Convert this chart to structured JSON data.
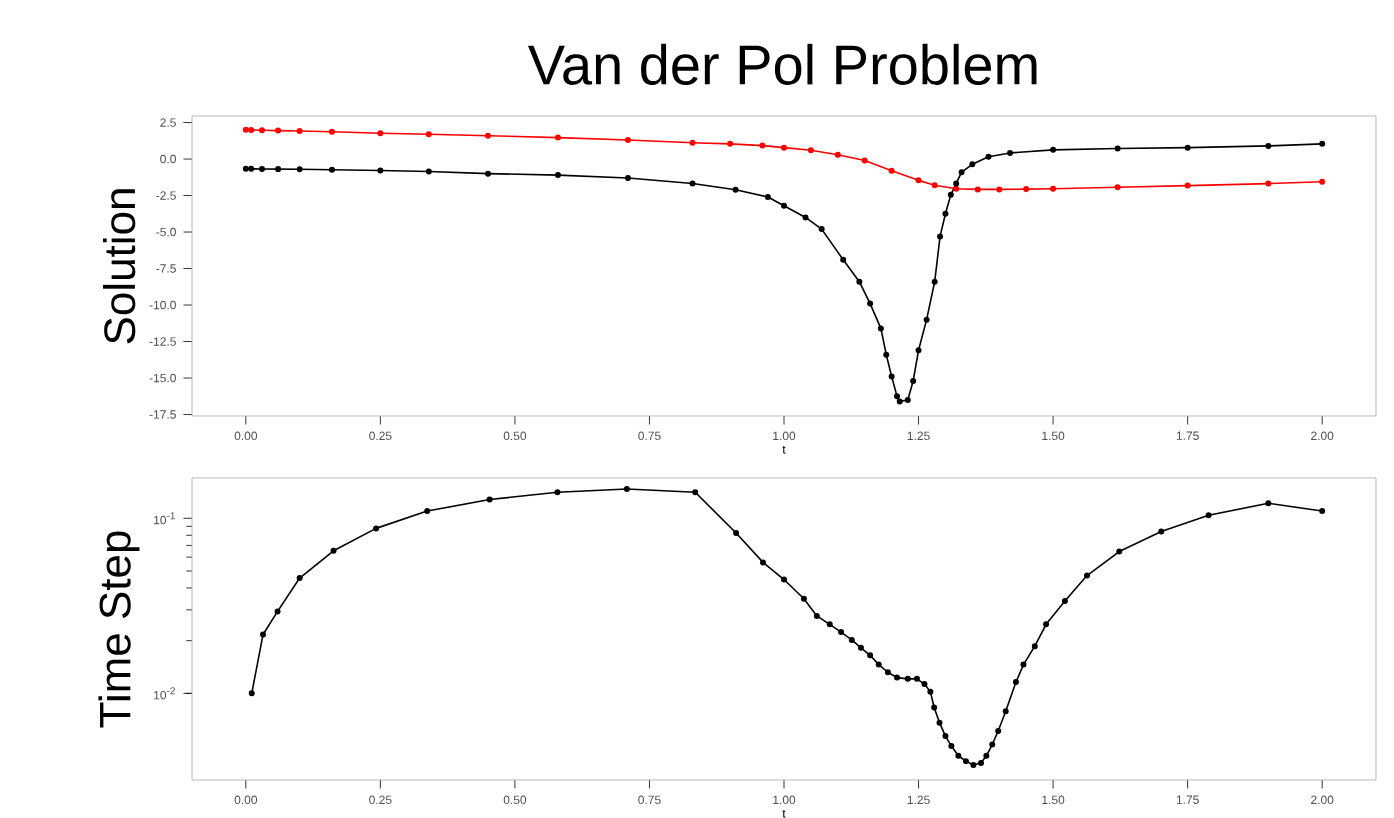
{
  "chart_data": [
    {
      "type": "line",
      "title": "Van der Pol Problem",
      "xlabel": "t",
      "ylabel": "Solution",
      "marker": "circle",
      "line_style": "solid",
      "xlim": [
        -0.1,
        2.1
      ],
      "ylim": [
        -17.6,
        2.95
      ],
      "xticks": [
        {
          "value": 0,
          "label": "0.00"
        },
        0.25,
        {
          "value": 0.5,
          "label": "0.50"
        },
        0.75,
        {
          "value": 1,
          "label": "1.00"
        },
        1.25,
        {
          "value": 1.5,
          "label": "1.50"
        },
        1.75,
        {
          "value": 2,
          "label": "2.00"
        }
      ],
      "yticks": [
        2.5,
        {
          "value": 0,
          "label": "0.0"
        },
        -2.5,
        {
          "value": -5,
          "label": "-5.0"
        },
        -7.5,
        {
          "value": -10,
          "label": "-10.0"
        },
        -12.5,
        {
          "value": -15,
          "label": "-15.0"
        },
        -17.5
      ],
      "series": [
        {
          "color": "#ff0000",
          "x": [
            0,
            0.01,
            0.03,
            0.06,
            0.1,
            0.16,
            0.25,
            0.34,
            0.45,
            0.58,
            0.71,
            0.83,
            0.9,
            0.96,
            1.0,
            1.05,
            1.1,
            1.15,
            1.2,
            1.25,
            1.28,
            1.32,
            1.36,
            1.4,
            1.45,
            1.5,
            1.62,
            1.75,
            1.9,
            2.0
          ],
          "values": [
            2.0,
            1.99,
            1.97,
            1.95,
            1.92,
            1.87,
            1.77,
            1.7,
            1.6,
            1.47,
            1.3,
            1.12,
            1.04,
            0.92,
            0.78,
            0.6,
            0.3,
            -0.1,
            -0.8,
            -1.46,
            -1.8,
            -2.03,
            -2.08,
            -2.08,
            -2.06,
            -2.03,
            -1.93,
            -1.82,
            -1.68,
            -1.56
          ]
        },
        {
          "color": "#000000",
          "x": [
            0,
            0.01,
            0.03,
            0.06,
            0.1,
            0.16,
            0.25,
            0.34,
            0.45,
            0.58,
            0.71,
            0.83,
            0.91,
            0.97,
            1.0,
            1.04,
            1.07,
            1.11,
            1.14,
            1.16,
            1.18,
            1.19,
            1.2,
            1.21,
            1.215,
            1.23,
            1.24,
            1.25,
            1.265,
            1.28,
            1.29,
            1.3,
            1.31,
            1.32,
            1.33,
            1.35,
            1.38,
            1.42,
            1.5,
            1.62,
            1.75,
            1.9,
            2.0
          ],
          "values": [
            -0.67,
            -0.67,
            -0.68,
            -0.69,
            -0.7,
            -0.73,
            -0.78,
            -0.85,
            -1.0,
            -1.1,
            -1.3,
            -1.67,
            -2.1,
            -2.6,
            -3.2,
            -4.0,
            -4.8,
            -6.9,
            -8.4,
            -9.9,
            -11.6,
            -13.4,
            -14.9,
            -16.25,
            -16.6,
            -16.5,
            -15.2,
            -13.1,
            -11.0,
            -8.4,
            -5.3,
            -3.75,
            -2.45,
            -1.67,
            -0.9,
            -0.36,
            0.16,
            0.42,
            0.63,
            0.72,
            0.78,
            0.9,
            1.04
          ]
        }
      ]
    },
    {
      "type": "line",
      "xlabel": "t",
      "ylabel": "Time Step",
      "marker": "circle",
      "line_style": "solid",
      "log": "y",
      "xlim": [
        -0.1,
        2.1
      ],
      "ylim": [
        0.0032,
        0.17
      ],
      "xticks": [
        {
          "value": 0,
          "label": "0.00"
        },
        0.25,
        {
          "value": 0.5,
          "label": "0.50"
        },
        0.75,
        {
          "value": 1,
          "label": "1.00"
        },
        1.25,
        {
          "value": 1.5,
          "label": "1.50"
        },
        1.75,
        {
          "value": 2,
          "label": "2.00"
        }
      ],
      "yticks": [
        {
          "value": 0.01,
          "label": "10$^{-2}$"
        },
        {
          "value": 0.1,
          "label": "10$^{-1}$"
        }
      ],
      "series": [
        {
          "color": "#000000",
          "x": [
            0.011,
            0.032,
            0.059,
            0.1,
            0.163,
            0.242,
            0.337,
            0.453,
            0.579,
            0.708,
            0.835,
            0.911,
            0.961,
            1.0,
            1.037,
            1.061,
            1.085,
            1.106,
            1.126,
            1.143,
            1.16,
            1.176,
            1.193,
            1.21,
            1.23,
            1.247,
            1.261,
            1.272,
            1.279,
            1.289,
            1.3,
            1.311,
            1.324,
            1.338,
            1.352,
            1.366,
            1.376,
            1.387,
            1.398,
            1.412,
            1.431,
            1.445,
            1.466,
            1.487,
            1.522,
            1.563,
            1.623,
            1.701,
            1.789,
            1.9,
            2.0
          ],
          "values": [
            0.01,
            0.0217,
            0.0294,
            0.0456,
            0.0652,
            0.0876,
            0.11,
            0.128,
            0.141,
            0.147,
            0.141,
            0.0824,
            0.056,
            0.0447,
            0.0347,
            0.0277,
            0.0248,
            0.0224,
            0.0202,
            0.0182,
            0.0165,
            0.0146,
            0.0132,
            0.0123,
            0.0121,
            0.0121,
            0.0113,
            0.0102,
            0.0083,
            0.0068,
            0.0057,
            0.005,
            0.0044,
            0.0041,
            0.0039,
            0.004,
            0.0044,
            0.0051,
            0.0061,
            0.0079,
            0.0116,
            0.0146,
            0.0186,
            0.0248,
            0.0337,
            0.0471,
            0.0646,
            0.0841,
            0.104,
            0.122,
            0.11
          ]
        }
      ]
    }
  ]
}
